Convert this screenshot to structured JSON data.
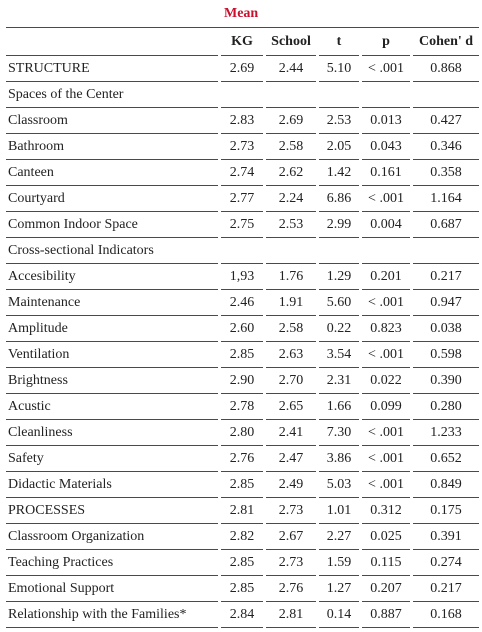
{
  "table": {
    "title": "Mean",
    "columns": [
      "KG",
      "School",
      "t",
      "p",
      "Cohen' d"
    ],
    "rows": [
      [
        "STRUCTURE",
        "2.69",
        "2.44",
        "5.10",
        "< .001",
        "0.868"
      ],
      [
        "Spaces of the Center"
      ],
      [
        "Classroom",
        "2.83",
        "2.69",
        "2.53",
        "0.013",
        "0.427"
      ],
      [
        "Bathroom",
        "2.73",
        "2.58",
        "2.05",
        "0.043",
        "0.346"
      ],
      [
        "Canteen",
        "2.74",
        "2.62",
        "1.42",
        "0.161",
        "0.358"
      ],
      [
        "Courtyard",
        "2.77",
        "2.24",
        "6.86",
        "< .001",
        "1.164"
      ],
      [
        "Common Indoor Space",
        "2.75",
        "2.53",
        "2.99",
        "0.004",
        "0.687"
      ],
      [
        "Cross-sectional Indicators"
      ],
      [
        "Accesibility",
        "1,93",
        "1.76",
        "1.29",
        "0.201",
        "0.217"
      ],
      [
        "Maintenance",
        "2.46",
        "1.91",
        "5.60",
        "< .001",
        "0.947"
      ],
      [
        "Amplitude",
        "2.60",
        "2.58",
        "0.22",
        "0.823",
        "0.038"
      ],
      [
        "Ventilation",
        "2.85",
        "2.63",
        "3.54",
        "< .001",
        "0.598"
      ],
      [
        "Brightness",
        "2.90",
        "2.70",
        "2.31",
        "0.022",
        "0.390"
      ],
      [
        "Acustic",
        "2.78",
        "2.65",
        "1.66",
        "0.099",
        "0.280"
      ],
      [
        "Cleanliness",
        "2.80",
        "2.41",
        "7.30",
        "< .001",
        "1.233"
      ],
      [
        "Safety",
        "2.76",
        "2.47",
        "3.86",
        "< .001",
        "0.652"
      ],
      [
        "Didactic Materials",
        "2.85",
        "2.49",
        "5.03",
        "< .001",
        "0.849"
      ],
      [
        "PROCESSES",
        "2.81",
        "2.73",
        "1.01",
        "0.312",
        "0.175"
      ],
      [
        "Classroom Organization",
        "2.82",
        "2.67",
        "2.27",
        "0.025",
        "0.391"
      ],
      [
        "Teaching Practices",
        "2.85",
        "2.73",
        "1.59",
        "0.115",
        "0.274"
      ],
      [
        "Emotional Support",
        "2.85",
        "2.76",
        "1.27",
        "0.207",
        "0.217"
      ],
      [
        "Relationship with the Families*",
        "2.84",
        "2.81",
        "0.14",
        "0.887",
        "0.168"
      ]
    ]
  }
}
